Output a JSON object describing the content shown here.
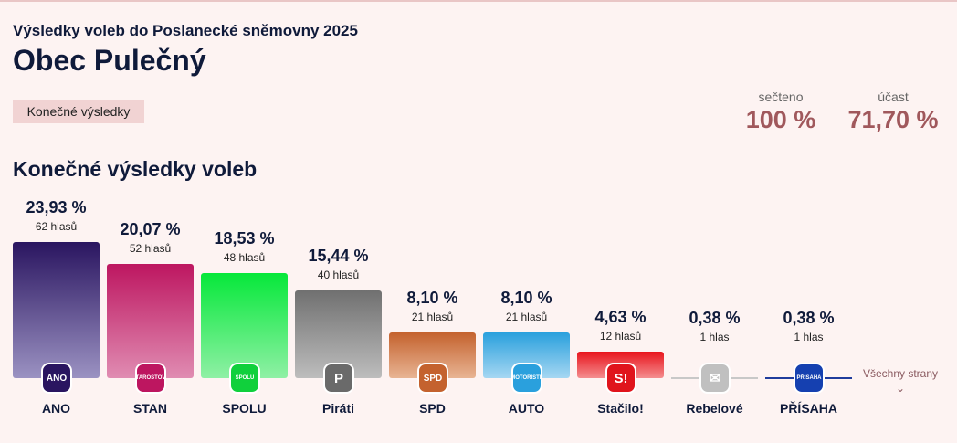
{
  "header": {
    "subtitle": "Výsledky voleb do Poslanecké sněmovny 2025",
    "title": "Obec Pulečný",
    "badge": "Konečné výsledky"
  },
  "stats": {
    "counted_label": "sečteno",
    "counted_value": "100 %",
    "turnout_label": "účast",
    "turnout_value": "71,70 %"
  },
  "section_title": "Konečné výsledky voleb",
  "all_parties": "Všechny strany",
  "chart_data": {
    "type": "bar",
    "categories": [
      "ANO",
      "STAN",
      "SPOLU",
      "Piráti",
      "SPD",
      "AUTO",
      "Stačilo!",
      "Rebelové",
      "PŘÍSAHA"
    ],
    "values": [
      23.93,
      20.07,
      18.53,
      15.44,
      8.1,
      8.1,
      4.63,
      0.38,
      0.38
    ]
  },
  "parties": [
    {
      "name": "ANO",
      "pct": "23,93 %",
      "votes": "62 hlasů",
      "value": 23.93,
      "top": "#2a1560",
      "bottom": "#9b92c2",
      "logo": "ANO",
      "logo_color": "#2a1560"
    },
    {
      "name": "STAN",
      "pct": "20,07 %",
      "votes": "52 hlasů",
      "value": 20.07,
      "top": "#bd1660",
      "bottom": "#e08cb2",
      "logo": "STAROSTOVÉ",
      "logo_color": "#bd1660"
    },
    {
      "name": "SPOLU",
      "pct": "18,53 %",
      "votes": "48 hlasů",
      "value": 18.53,
      "top": "#06e83a",
      "bottom": "#8ff0a5",
      "logo": "SPOLU",
      "logo_color": "#10d03c"
    },
    {
      "name": "Piráti",
      "pct": "15,44 %",
      "votes": "40 hlasů",
      "value": 15.44,
      "top": "#707070",
      "bottom": "#bdbdbd",
      "logo": "P",
      "logo_color": "#6a6a6a"
    },
    {
      "name": "SPD",
      "pct": "8,10 %",
      "votes": "21 hlasů",
      "value": 8.1,
      "top": "#c4622e",
      "bottom": "#e8b493",
      "logo": "SPD",
      "logo_color": "#c4622e"
    },
    {
      "name": "AUTO",
      "pct": "8,10 %",
      "votes": "21 hlasů",
      "value": 8.1,
      "top": "#2aa0dd",
      "bottom": "#a6d7f2",
      "logo": "MOTORISTÉ",
      "logo_color": "#2aa0dd"
    },
    {
      "name": "Stačilo!",
      "pct": "4,63 %",
      "votes": "12 hlasů",
      "value": 4.63,
      "top": "#e8141c",
      "bottom": "#f48d8f",
      "logo": "S!",
      "logo_color": "#e0141c"
    },
    {
      "name": "Rebelové",
      "pct": "0,38 %",
      "votes": "1 hlas",
      "value": 0.38,
      "top": "#c8c8c8",
      "bottom": "#c8c8c8",
      "logo": "✉",
      "logo_color": "#c0c0c0"
    },
    {
      "name": "PŘÍSAHA",
      "pct": "0,38 %",
      "votes": "1 hlas",
      "value": 0.38,
      "top": "#1f3c9c",
      "bottom": "#1f3c9c",
      "logo": "PŘÍSAHA",
      "logo_color": "#1540b0"
    }
  ]
}
